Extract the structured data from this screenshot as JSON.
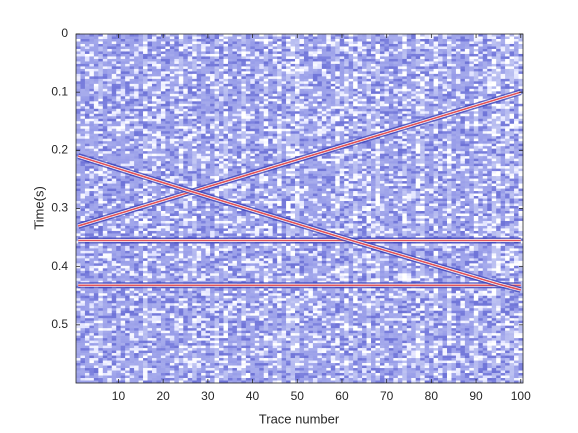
{
  "chart_data": {
    "type": "seismic",
    "xlabel": "Trace number",
    "ylabel": "Time(s)",
    "xlim": [
      0.5,
      100.5
    ],
    "xticks": [
      10,
      20,
      30,
      40,
      50,
      60,
      70,
      80,
      90,
      100
    ],
    "ylim": [
      0.6,
      0
    ],
    "yticks": [
      0,
      0.1,
      0.2,
      0.3,
      0.4,
      0.5
    ],
    "series": [
      {
        "color": "#e0525a",
        "x": [
          1,
          100
        ],
        "values": [
          0.355,
          0.355
        ]
      },
      {
        "color": "#e0525a",
        "x": [
          1,
          100
        ],
        "values": [
          0.432,
          0.432
        ]
      },
      {
        "color": "#e0525a",
        "x": [
          1,
          100
        ],
        "values": [
          0.33,
          0.1
        ]
      },
      {
        "color": "#e0525a",
        "x": [
          1,
          26,
          60,
          95,
          100
        ],
        "values": [
          0.21,
          0.27,
          0.35,
          0.43,
          0.44
        ]
      }
    ]
  }
}
